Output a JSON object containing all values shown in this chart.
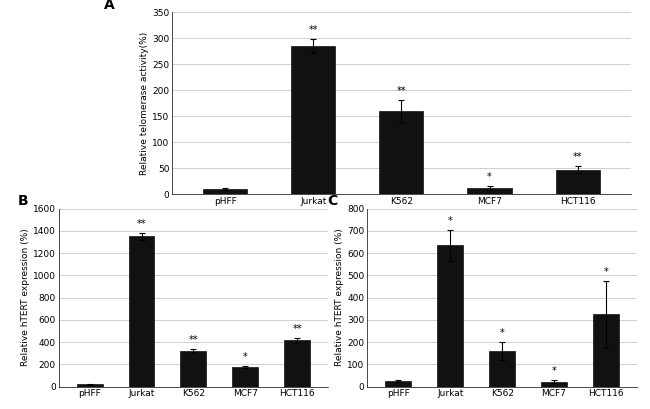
{
  "panel_A": {
    "label": "A",
    "categories": [
      "pHFF",
      "Jurkat",
      "K562",
      "MCF7",
      "HCT116"
    ],
    "values": [
      10,
      285,
      160,
      12,
      47
    ],
    "errors": [
      2,
      13,
      22,
      3,
      7
    ],
    "significance": [
      "",
      "**",
      "**",
      "*",
      "**"
    ],
    "ylabel": "Relative telomerase activity(%)",
    "ylim": [
      0,
      350
    ],
    "yticks": [
      0,
      50,
      100,
      150,
      200,
      250,
      300,
      350
    ]
  },
  "panel_B": {
    "label": "B",
    "categories": [
      "pHFF",
      "Jurkat",
      "K562",
      "MCF7",
      "HCT116"
    ],
    "values": [
      20,
      1350,
      320,
      175,
      415
    ],
    "errors": [
      5,
      30,
      20,
      12,
      25
    ],
    "significance": [
      "",
      "**",
      "**",
      "*",
      "**"
    ],
    "ylabel": "Relative hTERT expression (%)",
    "ylim": [
      0,
      1600
    ],
    "yticks": [
      0,
      200,
      400,
      600,
      800,
      1000,
      1200,
      1400,
      1600
    ]
  },
  "panel_C": {
    "label": "C",
    "categories": [
      "pHFF",
      "Jurkat",
      "K562",
      "MCF7",
      "HCT116"
    ],
    "values": [
      25,
      635,
      160,
      22,
      325
    ],
    "errors": [
      5,
      70,
      40,
      8,
      150
    ],
    "significance": [
      "",
      "*",
      "*",
      "*",
      "*"
    ],
    "ylabel": "Relative hTERT expression (%)",
    "ylim": [
      0,
      800
    ],
    "yticks": [
      0,
      100,
      200,
      300,
      400,
      500,
      600,
      700,
      800
    ]
  },
  "bar_color": "#111111",
  "bar_width": 0.5,
  "grid_color": "#c8c8c8",
  "label_fontsize": 6.5,
  "tick_fontsize": 6.5,
  "sig_fontsize": 7,
  "panel_label_fontsize": 10,
  "bg_color": "#ffffff"
}
